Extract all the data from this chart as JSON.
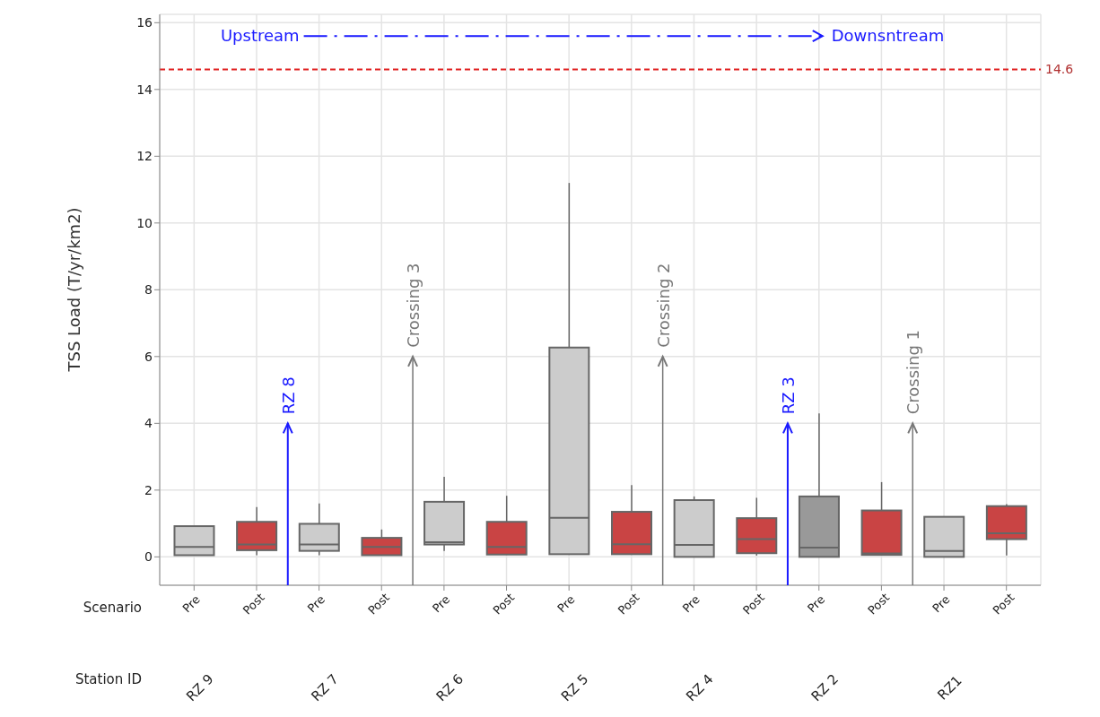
{
  "chart_data": {
    "type": "box",
    "ylabel": "TSS Load (T/yr/km2)",
    "categories": [
      "Pre",
      "Post",
      "Pre",
      "Post",
      "Pre",
      "Post",
      "Pre",
      "Post",
      "Pre",
      "Post",
      "Pre",
      "Post",
      "Pre",
      "Post"
    ],
    "colors": [
      "#cccccc",
      "#c94444",
      "#cccccc",
      "#c94444",
      "#cccccc",
      "#c94444",
      "#cccccc",
      "#c94444",
      "#cccccc",
      "#c94444",
      "#999999",
      "#c94444",
      "#cccccc",
      "#c94444"
    ],
    "boxes": [
      {
        "low": 0.05,
        "q1": 0.05,
        "median": 0.3,
        "q3": 0.92,
        "high": 0.92
      },
      {
        "low": 0.05,
        "q1": 0.2,
        "median": 0.37,
        "q3": 1.05,
        "high": 1.49
      },
      {
        "low": 0.05,
        "q1": 0.18,
        "median": 0.37,
        "q3": 0.99,
        "high": 1.6
      },
      {
        "low": 0.05,
        "q1": 0.05,
        "median": 0.3,
        "q3": 0.57,
        "high": 0.82
      },
      {
        "low": 0.18,
        "q1": 0.37,
        "median": 0.44,
        "q3": 1.65,
        "high": 2.4
      },
      {
        "low": 0.07,
        "q1": 0.07,
        "median": 0.3,
        "q3": 1.05,
        "high": 1.83
      },
      {
        "low": 0.08,
        "q1": 0.08,
        "median": 1.17,
        "q3": 6.27,
        "high": 11.2
      },
      {
        "low": 0.08,
        "q1": 0.08,
        "median": 0.38,
        "q3": 1.35,
        "high": 2.15
      },
      {
        "low": 0,
        "q1": 0,
        "median": 0.36,
        "q3": 1.7,
        "high": 1.81
      },
      {
        "low": 0.04,
        "q1": 0.11,
        "median": 0.53,
        "q3": 1.16,
        "high": 1.77
      },
      {
        "low": 0,
        "q1": 0,
        "median": 0.28,
        "q3": 1.81,
        "high": 4.3
      },
      {
        "low": 0.06,
        "q1": 0.06,
        "median": 0.1,
        "q3": 1.39,
        "high": 2.24
      },
      {
        "low": 0,
        "q1": 0,
        "median": 0.18,
        "q3": 1.2,
        "high": 1.2
      },
      {
        "low": 0.04,
        "q1": 0.53,
        "median": 0.71,
        "q3": 1.52,
        "high": 1.58
      }
    ],
    "ylim": [
      -0.85,
      16.25
    ],
    "yticks": [
      0,
      2,
      4,
      6,
      8,
      10,
      12,
      14,
      16
    ],
    "grid": true,
    "ref_lines": [
      {
        "axis": "y",
        "value": 14.6,
        "label": "14.6",
        "color": "#e02020",
        "line_style": "dashed"
      }
    ],
    "annotations": [
      "Upstream",
      "Downsntream",
      "Scenario",
      "Station ID",
      "RZ 9",
      "RZ 7",
      "RZ 6",
      "RZ 5",
      "RZ 4",
      "RZ 2",
      "RZ1",
      "RZ 8",
      "Crossing 3",
      "Crossing 2",
      "RZ 3",
      "Crossing 1"
    ]
  }
}
